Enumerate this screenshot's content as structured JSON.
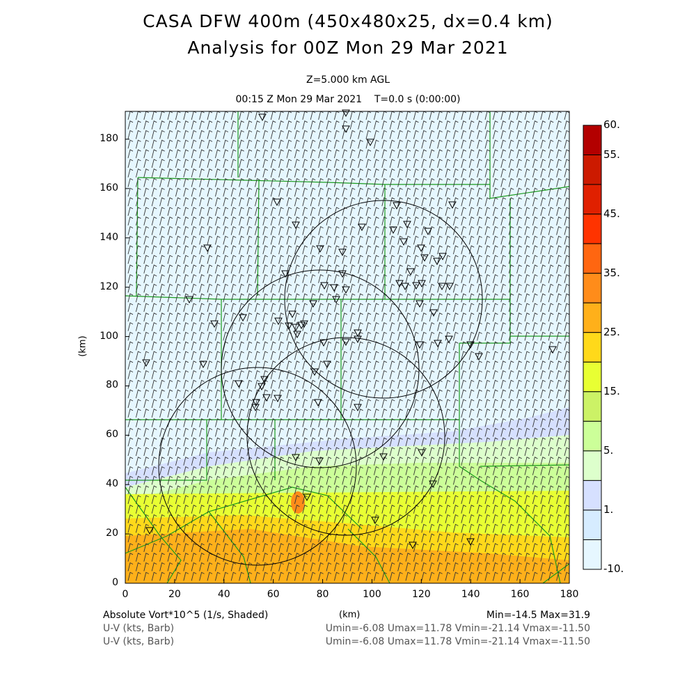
{
  "title_line1": "CASA DFW 400m (450x480x25, dx=0.4 km)",
  "title_line2": "Analysis for 00Z Mon 29 Mar 2021",
  "level": "Z=5.000 km AGL",
  "time": "00:15 Z Mon 29 Mar 2021    T=0.0 s (0:00:00)",
  "y_axis_label": "(km)",
  "x_axis_label": "(km)",
  "x_ticks": [
    "0",
    "20",
    "40",
    "60",
    "80",
    "100",
    "120",
    "140",
    "160",
    "180"
  ],
  "y_ticks": [
    "0",
    "20",
    "40",
    "60",
    "80",
    "100",
    "120",
    "140",
    "160",
    "180"
  ],
  "colorbar": {
    "labels": [
      "60.",
      "55.",
      "45.",
      "35.",
      "25.",
      "15.",
      "5.",
      "1.",
      "-10."
    ],
    "colors": [
      "#b30000",
      "#cc1a00",
      "#e02000",
      "#ff3300",
      "#ff6610",
      "#ff8c1a",
      "#ffb01a",
      "#ffd91a",
      "#e8ff33",
      "#ccf266",
      "#ccff99",
      "#ddffcc",
      "#d6e0ff",
      "#d6ecff",
      "#e6f7ff"
    ]
  },
  "footer": {
    "field_label": "Absolute Vort*10^5 (1/s, Shaded)",
    "minmax": "Min=-14.5 Max=31.9",
    "barb1_label": "U-V (kts, Barb)",
    "barb1_stats": "Umin=-6.08 Umax=11.78 Vmin=-21.14 Vmax=-11.50",
    "barb2_label": "U-V (kts, Barb)",
    "barb2_stats": "Umin=-6.08 Umax=11.78 Vmin=-21.14 Vmax=-11.50"
  }
}
